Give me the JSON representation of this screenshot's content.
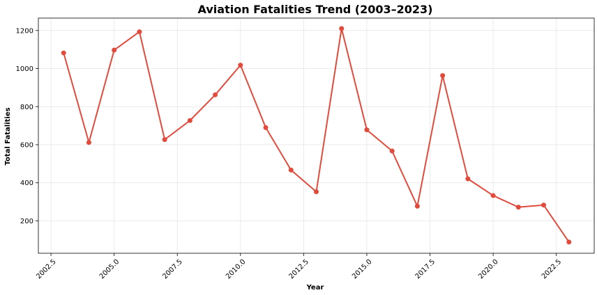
{
  "chart_data": {
    "type": "line",
    "title": "Aviation Fatalities Trend (2003–2023)",
    "xlabel": "Year",
    "ylabel": "Total Fatalities",
    "xlim": [
      2002.0,
      2024.0
    ],
    "ylim": [
      30,
      1265
    ],
    "x_ticks": [
      2002.5,
      2005.0,
      2007.5,
      2010.0,
      2012.5,
      2015.0,
      2017.5,
      2020.0,
      2022.5
    ],
    "x_tick_labels": [
      "2002.5",
      "2005.0",
      "2007.5",
      "2010.0",
      "2012.5",
      "2015.0",
      "2017.5",
      "2020.0",
      "2022.5"
    ],
    "y_ticks": [
      200,
      400,
      600,
      800,
      1000,
      1200
    ],
    "y_tick_labels": [
      "200",
      "400",
      "600",
      "800",
      "1000",
      "1200"
    ],
    "grid": true,
    "color": "#e04b3c",
    "series": [
      {
        "x": [
          2003,
          2004,
          2005,
          2006,
          2007,
          2008,
          2009,
          2010,
          2011,
          2012,
          2013,
          2014,
          2015,
          2016,
          2017,
          2018,
          2019,
          2020,
          2021,
          2022,
          2023
        ],
        "values": [
          1082,
          612,
          1097,
          1193,
          627,
          727,
          862,
          1018,
          690,
          467,
          353,
          1210,
          678,
          567,
          277,
          963,
          421,
          333,
          272,
          283,
          89
        ]
      }
    ]
  }
}
